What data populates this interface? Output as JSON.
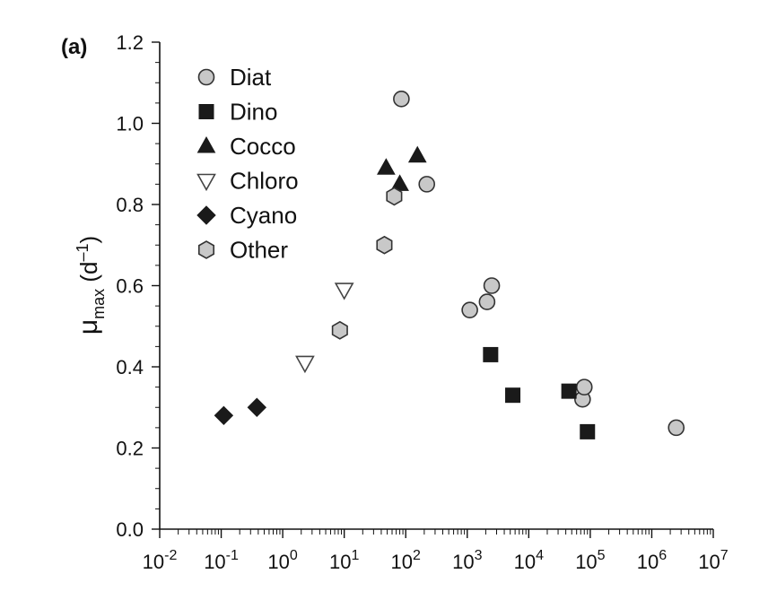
{
  "chart_data": {
    "type": "scatter",
    "panel_label": "(a)",
    "title": "",
    "xlabel": "",
    "ylabel": {
      "main": "μ",
      "sub": "max",
      "unit_open": "(d",
      "unit_sup": "–1",
      "unit_close": ")"
    },
    "x_scale": "log",
    "xlim": [
      0.01,
      10000000
    ],
    "ylim": [
      0,
      1.2
    ],
    "x_ticks": [
      {
        "base": "10",
        "exp": "-2",
        "value": 0.01
      },
      {
        "base": "10",
        "exp": "-1",
        "value": 0.1
      },
      {
        "base": "10",
        "exp": "0",
        "value": 1
      },
      {
        "base": "10",
        "exp": "1",
        "value": 10
      },
      {
        "base": "10",
        "exp": "2",
        "value": 100
      },
      {
        "base": "10",
        "exp": "3",
        "value": 1000
      },
      {
        "base": "10",
        "exp": "4",
        "value": 10000
      },
      {
        "base": "10",
        "exp": "5",
        "value": 100000
      },
      {
        "base": "10",
        "exp": "6",
        "value": 1000000
      },
      {
        "base": "10",
        "exp": "7",
        "value": 10000000
      }
    ],
    "y_ticks": [
      {
        "label": "0.0",
        "value": 0.0
      },
      {
        "label": "0.2",
        "value": 0.2
      },
      {
        "label": "0.4",
        "value": 0.4
      },
      {
        "label": "0.6",
        "value": 0.6
      },
      {
        "label": "0.8",
        "value": 0.8
      },
      {
        "label": "1.0",
        "value": 1.0
      },
      {
        "label": "1.2",
        "value": 1.2
      }
    ],
    "grid": false,
    "legend_position": "top-left",
    "series": [
      {
        "name": "Diat",
        "marker": "circle",
        "fill": "#c8c8c8",
        "stroke": "#333333",
        "points": [
          [
            85,
            1.06
          ],
          [
            220,
            0.85
          ],
          [
            1100,
            0.54
          ],
          [
            2100,
            0.56
          ],
          [
            2500,
            0.6
          ],
          [
            75000,
            0.32
          ],
          [
            80000,
            0.35
          ],
          [
            2500000,
            0.25
          ]
        ]
      },
      {
        "name": "Dino",
        "marker": "square",
        "fill": "#1a1a1a",
        "stroke": "#1a1a1a",
        "points": [
          [
            2400,
            0.43
          ],
          [
            5500,
            0.33
          ],
          [
            45000,
            0.34
          ],
          [
            90000,
            0.24
          ]
        ]
      },
      {
        "name": "Cocco",
        "marker": "triangle-up",
        "fill": "#1a1a1a",
        "stroke": "#1a1a1a",
        "points": [
          [
            48,
            0.89
          ],
          [
            80,
            0.85
          ],
          [
            155,
            0.92
          ]
        ]
      },
      {
        "name": "Chloro",
        "marker": "triangle-down",
        "fill": "#ffffff",
        "stroke": "#444444",
        "points": [
          [
            2.3,
            0.41
          ],
          [
            10,
            0.59
          ]
        ]
      },
      {
        "name": "Cyano",
        "marker": "diamond",
        "fill": "#1a1a1a",
        "stroke": "#1a1a1a",
        "points": [
          [
            0.11,
            0.28
          ],
          [
            0.38,
            0.3
          ]
        ]
      },
      {
        "name": "Other",
        "marker": "hexagon",
        "fill": "#c8c8c8",
        "stroke": "#333333",
        "points": [
          [
            8.5,
            0.49
          ],
          [
            45,
            0.7
          ],
          [
            65,
            0.82
          ]
        ]
      }
    ]
  }
}
